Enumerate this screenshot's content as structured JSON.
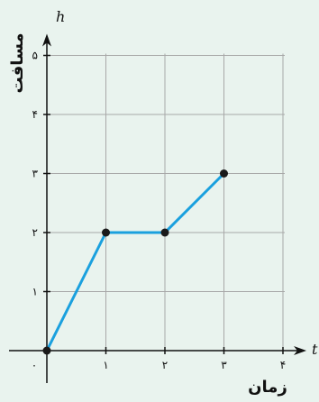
{
  "chart_data": {
    "type": "line",
    "xlabel": "زمان",
    "ylabel": "مسافت",
    "x_axis_symbol": "t",
    "y_axis_symbol": "h",
    "origin_label": "۰",
    "x_ticks": [
      {
        "value": 1,
        "label": "۱"
      },
      {
        "value": 2,
        "label": "۲"
      },
      {
        "value": 3,
        "label": "۳"
      },
      {
        "value": 4,
        "label": "۴"
      }
    ],
    "y_ticks": [
      {
        "value": 1,
        "label": "۱"
      },
      {
        "value": 2,
        "label": "۲"
      },
      {
        "value": 3,
        "label": "۳"
      },
      {
        "value": 4,
        "label": "۴"
      },
      {
        "value": 5,
        "label": "۵"
      }
    ],
    "xlim": [
      0,
      4
    ],
    "ylim": [
      0,
      5
    ],
    "grid": true,
    "series": [
      {
        "points": [
          {
            "x": 0,
            "y": 0
          },
          {
            "x": 1,
            "y": 2
          },
          {
            "x": 2,
            "y": 2
          },
          {
            "x": 3,
            "y": 3
          }
        ],
        "color": "#1aa0de"
      }
    ],
    "axis_color": "#111111",
    "grid_color": "#a8a8a8",
    "point_color": "#1a1a1a"
  }
}
